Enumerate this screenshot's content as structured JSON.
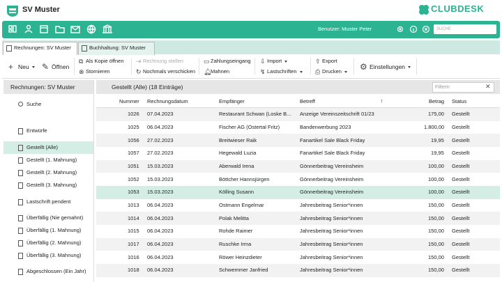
{
  "header": {
    "club": "SV Muster",
    "brand": "CLUBDESK"
  },
  "navbar": {
    "user": "Benutzer: Muster Peter",
    "search": "SUCHE"
  },
  "tabs": [
    "Rechnungen: SV Muster",
    "Buchhaltung: SV Muster"
  ],
  "actions": {
    "new": "Neu",
    "open": "Öffnen",
    "copy": "Als Kopie öffnen",
    "cancel": "Stornieren",
    "invoice": "Rechnung stellen",
    "resend": "Nochmals verschicken",
    "payment": "Zahlungseingang",
    "remind": "Mahnen",
    "import": "Import",
    "debits": "Lastschriften",
    "export": "Export",
    "print": "Drucken",
    "settings": "Einstellungen"
  },
  "sidebar": {
    "title": "Rechnungen: SV Muster",
    "items": [
      "Suche",
      "Entwürfe",
      "Gestellt (Alle)",
      "Gestellt (1. Mahnung)",
      "Gestellt (2. Mahnung)",
      "Gestellt (3. Mahnung)",
      "Lastschrift pendent",
      "Überfällig (Nie gemahnt)",
      "Überfällig (1. Mahnung)",
      "Überfällig (2. Mahnung)",
      "Überfällig (3. Mahnung)",
      "Abgeschlossen (Ein Jahr)"
    ]
  },
  "list": {
    "title": "Gestellt (Alle) (18 Einträge)",
    "filter": "Filtern",
    "columns": [
      "Nummer",
      "Rechnungsdatum",
      "Empfänger",
      "Betreff",
      "Betrag",
      "Status"
    ],
    "rows": [
      [
        "1026",
        "07.04.2023",
        "Restaurant Schwan (Loske B...",
        "Anzeige Vereinszeitschrift 01/23",
        "175,00",
        "Gestellt"
      ],
      [
        "1025",
        "06.04.2023",
        "Fischer AG (Ostertal Fritz)",
        "Bandenwerbung 2023",
        "1.800,00",
        "Gestellt"
      ],
      [
        "1056",
        "27.02.2023",
        "Breitwieser Raik",
        "Fanartikel Sale Black Friday",
        "19,95",
        "Gestellt"
      ],
      [
        "1057",
        "27.02.2023",
        "Hegewald Luzia",
        "Fanartikel Sale Black Friday",
        "19,95",
        "Gestellt"
      ],
      [
        "1051",
        "15.03.2023",
        "Aberwald Irena",
        "Gönnerbeitrag Vereinsheim",
        "100,00",
        "Gestellt"
      ],
      [
        "1052",
        "15.03.2023",
        "Böttcher Hannsjürgen",
        "Gönnerbeitrag Vereinsheim",
        "100,00",
        "Gestellt"
      ],
      [
        "1053",
        "15.03.2023",
        "Kölling Susann",
        "Gönnerbeitrag Vereinsheim",
        "100,00",
        "Gestellt"
      ],
      [
        "1013",
        "06.04.2023",
        "Ostmann Engelmar",
        "Jahresbeitrag Senior*innen",
        "150,00",
        "Gestellt"
      ],
      [
        "1014",
        "06.04.2023",
        "Polak Melitta",
        "Jahresbeitrag Senior*innen",
        "150,00",
        "Gestellt"
      ],
      [
        "1015",
        "06.04.2023",
        "Rohde Raimer",
        "Jahresbeitrag Senior*innen",
        "150,00",
        "Gestellt"
      ],
      [
        "1017",
        "06.04.2023",
        "Ruschke Irma",
        "Jahresbeitrag Senior*innen",
        "150,00",
        "Gestellt"
      ],
      [
        "1016",
        "06.04.2023",
        "Röwer Heinzdieter",
        "Jahresbeitrag Senior*innen",
        "150,00",
        "Gestellt"
      ],
      [
        "1018",
        "06.04.2023",
        "Schwemmer Janfried",
        "Jahresbeitrag Senior*innen",
        "150,00",
        "Gestellt"
      ]
    ]
  }
}
